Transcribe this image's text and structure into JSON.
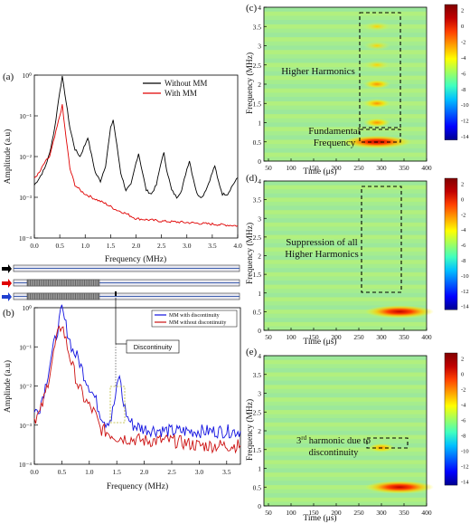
{
  "colors": {
    "without_mm": "#000000",
    "with_mm": "#e00000",
    "with_discontinuity": "#1010e0",
    "without_discontinuity": "#cc1010",
    "colormap": [
      "#00008f",
      "#0000ff",
      "#0060ff",
      "#00c0ff",
      "#40ffc0",
      "#a0ff60",
      "#ffff00",
      "#ffa000",
      "#ff4000",
      "#c00000",
      "#800000"
    ]
  },
  "panel_a": {
    "letter": "(a)",
    "ylabel": "Amplitude (a.u)",
    "xlabel": "Frequency (MHz)",
    "legend": [
      "Without MM",
      "With MM"
    ]
  },
  "panel_b": {
    "letter": "(b)",
    "ylabel": "Amplinde (a.u)",
    "xlabel": "Frequency (MHz)",
    "legend": [
      "MM with discontinuity",
      "MM without discontinuity"
    ],
    "callout": "Discontinuity"
  },
  "panel_c": {
    "letter": "(c)",
    "ylabel": "Frequency (MHz)",
    "xlabel": "Time (μs)",
    "annotation_1": "Higher Harmonics",
    "annotation_2_line1": "Fundamental",
    "annotation_2_line2": "Frequency"
  },
  "panel_d": {
    "letter": "(d)",
    "ylabel": "Frequency (MHz)",
    "xlabel": "Time (μs)",
    "annotation_line1": "Suppression of all",
    "annotation_line2": "Higher Harmonics"
  },
  "panel_e": {
    "letter": "(e)",
    "ylabel": "Frequency (MHz)",
    "xlabel": "Time (μs)",
    "annotation_line1_pre": "3",
    "annotation_line1_sup": "rd",
    "annotation_line1_post": " harmonic due to",
    "annotation_line2": "discontinuity"
  },
  "chart_data": [
    {
      "type": "line",
      "panel": "(a)",
      "xlabel": "Frequency (MHz)",
      "ylabel": "Amplitude (a.u)",
      "yscale": "log",
      "xlim": [
        0,
        4
      ],
      "ylim": [
        0.0001,
        1
      ],
      "xticks": [
        "0.0",
        "0.5",
        "1.0",
        "1.5",
        "2.0",
        "2.5",
        "3.0",
        "3.5",
        "4.0"
      ],
      "yticks": [
        "10⁻⁴",
        "10⁻³",
        "10⁻²",
        "10⁻¹",
        "10⁰"
      ],
      "legend_position": "top-right",
      "series": [
        {
          "name": "Without MM",
          "x": [
            0,
            0.1,
            0.2,
            0.3,
            0.4,
            0.5,
            0.55,
            0.6,
            0.7,
            0.8,
            0.9,
            1.0,
            1.05,
            1.1,
            1.2,
            1.3,
            1.4,
            1.5,
            1.55,
            1.6,
            1.7,
            1.8,
            1.9,
            2.0,
            2.05,
            2.1,
            2.2,
            2.3,
            2.4,
            2.5,
            2.55,
            2.6,
            2.7,
            2.8,
            2.9,
            3.0,
            3.05,
            3.1,
            3.2,
            3.3,
            3.4,
            3.5,
            3.55,
            3.6,
            3.7,
            3.8,
            3.9,
            4.0
          ],
          "y": [
            0.002,
            0.003,
            0.005,
            0.012,
            0.05,
            0.4,
            0.9,
            0.35,
            0.05,
            0.015,
            0.01,
            0.02,
            0.03,
            0.015,
            0.004,
            0.0025,
            0.006,
            0.05,
            0.08,
            0.03,
            0.004,
            0.0015,
            0.002,
            0.007,
            0.012,
            0.006,
            0.0015,
            0.0012,
            0.002,
            0.008,
            0.012,
            0.005,
            0.0015,
            0.001,
            0.0015,
            0.005,
            0.008,
            0.004,
            0.0012,
            0.001,
            0.0018,
            0.004,
            0.006,
            0.003,
            0.0012,
            0.0012,
            0.002,
            0.003
          ]
        },
        {
          "name": "With MM",
          "x": [
            0,
            0.1,
            0.2,
            0.3,
            0.4,
            0.5,
            0.55,
            0.6,
            0.7,
            0.8,
            0.9,
            1.0,
            1.2,
            1.4,
            1.6,
            1.8,
            2.0,
            2.5,
            3.0,
            3.5,
            4.0
          ],
          "y": [
            0.003,
            0.004,
            0.007,
            0.01,
            0.03,
            0.1,
            0.18,
            0.05,
            0.005,
            0.002,
            0.0015,
            0.0012,
            0.0009,
            0.0007,
            0.0005,
            0.0004,
            0.0003,
            0.00026,
            0.00024,
            0.00022,
            0.0002
          ]
        }
      ]
    },
    {
      "type": "line",
      "panel": "(b)",
      "xlabel": "Frequency (MHz)",
      "ylabel": "Amplinde (a.u)",
      "yscale": "log",
      "xlim": [
        0,
        3.75
      ],
      "ylim": [
        0.0001,
        1
      ],
      "xticks": [
        "0.0",
        "0.5",
        "1.0",
        "1.5",
        "2.0",
        "2.5",
        "3.0",
        "3.5"
      ],
      "yticks": [
        "10⁻⁴",
        "10⁻³",
        "10⁻²",
        "10⁻¹",
        "10⁰"
      ],
      "legend_position": "top-right",
      "series": [
        {
          "name": "MM with discontinuity",
          "x": [
            0,
            0.1,
            0.2,
            0.3,
            0.4,
            0.5,
            0.6,
            0.7,
            0.8,
            0.9,
            1.0,
            1.1,
            1.2,
            1.3,
            1.4,
            1.5,
            1.55,
            1.6,
            1.7,
            1.8,
            2.0,
            2.5,
            3.0,
            3.5,
            3.75
          ],
          "y": [
            0.002,
            0.003,
            0.01,
            0.05,
            0.2,
            0.9,
            0.25,
            0.08,
            0.05,
            0.02,
            0.01,
            0.005,
            0.002,
            0.0012,
            0.0015,
            0.008,
            0.02,
            0.005,
            0.0015,
            0.001,
            0.0008,
            0.0007,
            0.0007,
            0.0007,
            0.0007
          ]
        },
        {
          "name": "MM without discontinuity",
          "x": [
            0,
            0.1,
            0.2,
            0.3,
            0.4,
            0.5,
            0.6,
            0.7,
            0.8,
            0.9,
            1.0,
            1.1,
            1.2,
            1.5,
            2.0,
            2.5,
            3.0,
            3.5,
            3.75
          ],
          "y": [
            0.0015,
            0.002,
            0.006,
            0.03,
            0.15,
            0.4,
            0.1,
            0.03,
            0.01,
            0.005,
            0.003,
            0.002,
            0.0008,
            0.0005,
            0.0004,
            0.0004,
            0.0003,
            0.0003,
            0.0003
          ]
        }
      ]
    },
    {
      "type": "heatmap",
      "panel": "(c)",
      "xlabel": "Time (μs)",
      "ylabel": "Frequency (MHz)",
      "xlim": [
        40,
        400
      ],
      "ylim": [
        0,
        4
      ],
      "xticks": [
        "50",
        "100",
        "150",
        "200",
        "250",
        "300",
        "350",
        "400"
      ],
      "yticks": [
        "0",
        "0.5",
        "1",
        "1.5",
        "2",
        "2.5",
        "3",
        "3.5",
        "4"
      ],
      "colorbar_ticks": [
        "2",
        "0",
        "-2",
        "-4",
        "-6",
        "-8",
        "-10",
        "-12",
        "-14"
      ],
      "peaks": [
        {
          "t": 290,
          "f": 0.5
        },
        {
          "t": 290,
          "f": 1.0
        },
        {
          "t": 290,
          "f": 1.5
        },
        {
          "t": 290,
          "f": 2.0
        },
        {
          "t": 290,
          "f": 2.5
        },
        {
          "t": 290,
          "f": 3.0
        },
        {
          "t": 290,
          "f": 3.5
        }
      ]
    },
    {
      "type": "heatmap",
      "panel": "(d)",
      "xlabel": "Time (μs)",
      "ylabel": "Frequency (MHz)",
      "xlim": [
        40,
        400
      ],
      "ylim": [
        0,
        4
      ],
      "xticks": [
        "50",
        "100",
        "150",
        "200",
        "250",
        "300",
        "350",
        "400"
      ],
      "yticks": [
        "0",
        "0.5",
        "1",
        "1.5",
        "2",
        "2.5",
        "3",
        "3.5",
        "4"
      ],
      "colorbar_ticks": [
        "2",
        "0",
        "-2",
        "-4",
        "-6",
        "-8",
        "-10",
        "-12",
        "-14"
      ],
      "peaks": [
        {
          "t": 340,
          "f": 0.5
        }
      ]
    },
    {
      "type": "heatmap",
      "panel": "(e)",
      "xlabel": "Time (μs)",
      "ylabel": "Frequency (MHz)",
      "xlim": [
        40,
        400
      ],
      "ylim": [
        0,
        4
      ],
      "xticks": [
        "50",
        "100",
        "150",
        "200",
        "250",
        "300",
        "350",
        "400"
      ],
      "yticks": [
        "0",
        "0.5",
        "1",
        "1.5",
        "2",
        "2.5",
        "3",
        "3.5",
        "4"
      ],
      "colorbar_ticks": [
        "2",
        "0",
        "-2",
        "-4",
        "-6",
        "-8",
        "-10",
        "-12",
        "-14"
      ],
      "peaks": [
        {
          "t": 340,
          "f": 0.5
        },
        {
          "t": 300,
          "f": 1.55
        }
      ]
    }
  ]
}
